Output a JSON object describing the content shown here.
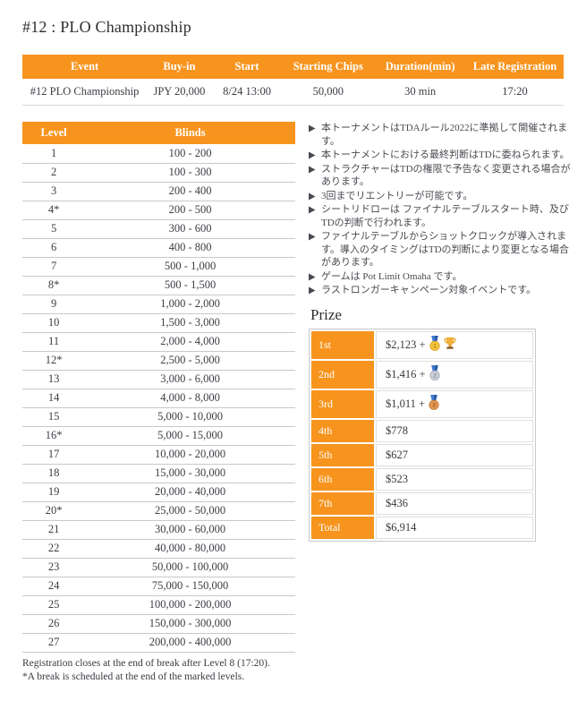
{
  "page": {
    "title": "#12 : PLO Championship"
  },
  "colors": {
    "accent": "#F7941E",
    "header_text": "#FFFFFF",
    "body_text": "#3C3C44",
    "row_border": "#C9C9C9"
  },
  "event_table": {
    "headers": [
      "Event",
      "Buy-in",
      "Start",
      "Starting Chips",
      "Duration(min)",
      "Late Registration"
    ],
    "row": [
      "#12 PLO Championship",
      "JPY 20,000",
      "8/24 13:00",
      "50,000",
      "30 min",
      "17:20"
    ]
  },
  "levels_table": {
    "headers": [
      "Level",
      "Blinds"
    ],
    "rows": [
      [
        "1",
        "100 - 200"
      ],
      [
        "2",
        "100 - 300"
      ],
      [
        "3",
        "200 - 400"
      ],
      [
        "4*",
        "200 - 500"
      ],
      [
        "5",
        "300 - 600"
      ],
      [
        "6",
        "400 - 800"
      ],
      [
        "7",
        "500 - 1,000"
      ],
      [
        "8*",
        "500 - 1,500"
      ],
      [
        "9",
        "1,000 - 2,000"
      ],
      [
        "10",
        "1,500 - 3,000"
      ],
      [
        "11",
        "2,000 - 4,000"
      ],
      [
        "12*",
        "2,500 - 5,000"
      ],
      [
        "13",
        "3,000 - 6,000"
      ],
      [
        "14",
        "4,000 - 8,000"
      ],
      [
        "15",
        "5,000 - 10,000"
      ],
      [
        "16*",
        "5,000 - 15,000"
      ],
      [
        "17",
        "10,000 - 20,000"
      ],
      [
        "18",
        "15,000 - 30,000"
      ],
      [
        "19",
        "20,000 - 40,000"
      ],
      [
        "20*",
        "25,000 - 50,000"
      ],
      [
        "21",
        "30,000 - 60,000"
      ],
      [
        "22",
        "40,000 - 80,000"
      ],
      [
        "23",
        "50,000 - 100,000"
      ],
      [
        "24",
        "75,000 - 150,000"
      ],
      [
        "25",
        "100,000 - 200,000"
      ],
      [
        "26",
        "150,000 - 300,000"
      ],
      [
        "27",
        "200,000 - 400,000"
      ]
    ]
  },
  "footnotes": [
    "Registration closes at the end of break after Level 8 (17:20).",
    "*A break is scheduled at the end of the marked levels."
  ],
  "notes": {
    "bullet_icon": "arrow-bullet-icon",
    "items": [
      "本トーナメントはTDAルール2022に準拠して開催されます。",
      "本トーナメントにおける最終判断はTDに委ねられます。",
      "ストラクチャーはTDの権限で予告なく変更される場合があります。",
      "3回までリエントリーが可能です。",
      "シートリドローは ファイナルテーブルスタート時、及びTDの判断で行われます。",
      "ファイナルテーブルからショットクロックが導入されます。導入のタイミングはTDの判断により変更となる場合があります。",
      "ゲームは Pot Limit Omaha です。",
      "ラストロンガーキャンペーン対象イベントです。"
    ]
  },
  "prize": {
    "heading": "Prize",
    "rows": [
      {
        "place": "1st",
        "value": "$2,123 +",
        "icons": [
          "gold-medal-icon",
          "trophy-icon"
        ]
      },
      {
        "place": "2nd",
        "value": "$1,416 +",
        "icons": [
          "silver-medal-icon"
        ]
      },
      {
        "place": "3rd",
        "value": "$1,011 +",
        "icons": [
          "bronze-medal-icon"
        ]
      },
      {
        "place": "4th",
        "value": "$778",
        "icons": []
      },
      {
        "place": "5th",
        "value": "$627",
        "icons": []
      },
      {
        "place": "6th",
        "value": "$523",
        "icons": []
      },
      {
        "place": "7th",
        "value": "$436",
        "icons": []
      },
      {
        "place": "Total",
        "value": "$6,914",
        "icons": []
      }
    ]
  }
}
